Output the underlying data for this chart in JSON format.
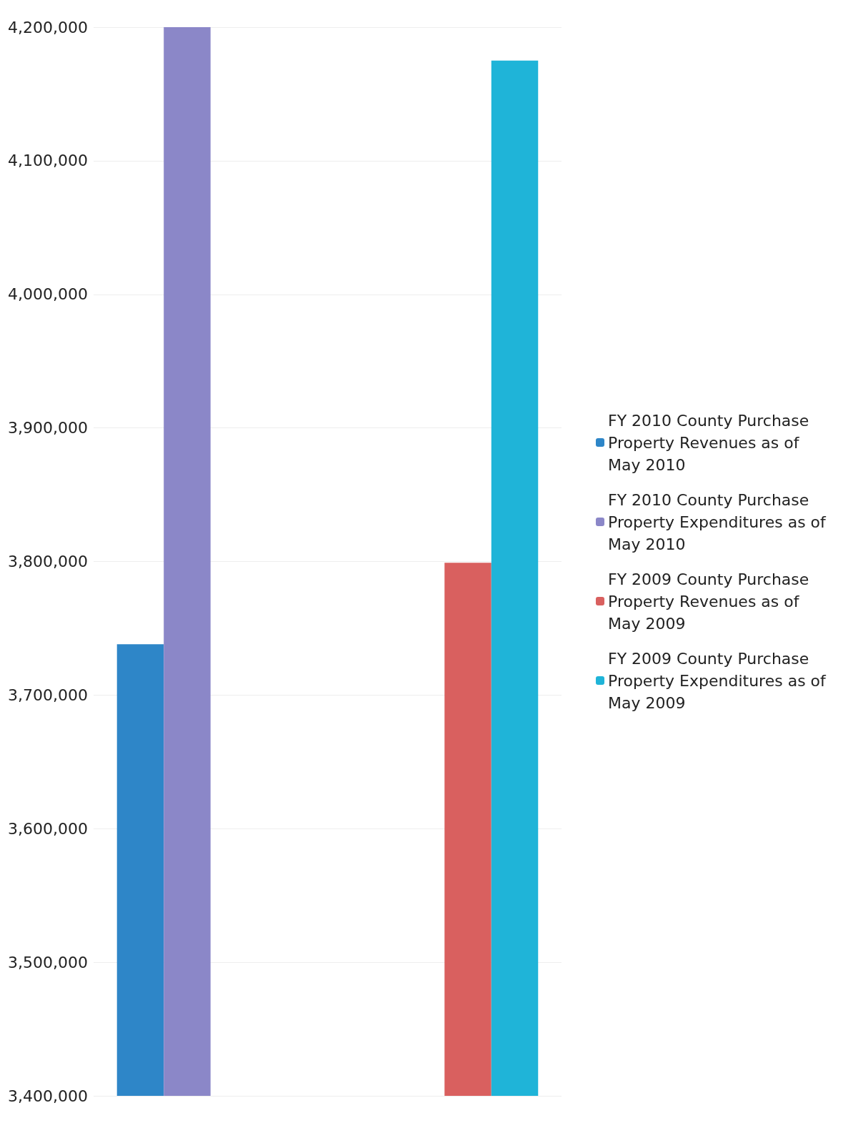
{
  "chart_data": {
    "type": "bar",
    "categories": [
      null,
      null
    ],
    "series": [
      {
        "name": "FY 2010 County Purchase Property Revenues as of May 2010",
        "color": "#2e86c8",
        "values": [
          3738000,
          null
        ]
      },
      {
        "name": "FY 2010 County Purchase Property Expenditures as of May 2010",
        "color": "#8b87c8",
        "values": [
          4200000,
          null
        ]
      },
      {
        "name": "FY 2009 County Purchase Property Revenues as of May 2009",
        "color": "#d9605f",
        "values": [
          null,
          3799000
        ]
      },
      {
        "name": "FY 2009 County Purchase Property Expenditures as of May 2009",
        "color": "#1fb4d8",
        "values": [
          null,
          4175000
        ]
      }
    ],
    "ylim": [
      3400000,
      4200000
    ],
    "yticks": [
      {
        "value": 3400000,
        "label": "3,400,000"
      },
      {
        "value": 3500000,
        "label": "3,500,000"
      },
      {
        "value": 3600000,
        "label": "3,600,000"
      },
      {
        "value": 3700000,
        "label": "3,700,000"
      },
      {
        "value": 3800000,
        "label": "3,800,000"
      },
      {
        "value": 3900000,
        "label": "3,900,000"
      },
      {
        "value": 4000000,
        "label": "4,000,000"
      },
      {
        "value": 4100000,
        "label": "4,100,000"
      },
      {
        "value": 4200000,
        "label": "4,200,000"
      }
    ],
    "grid": "y",
    "legend": "right",
    "tick_labels": "y"
  }
}
